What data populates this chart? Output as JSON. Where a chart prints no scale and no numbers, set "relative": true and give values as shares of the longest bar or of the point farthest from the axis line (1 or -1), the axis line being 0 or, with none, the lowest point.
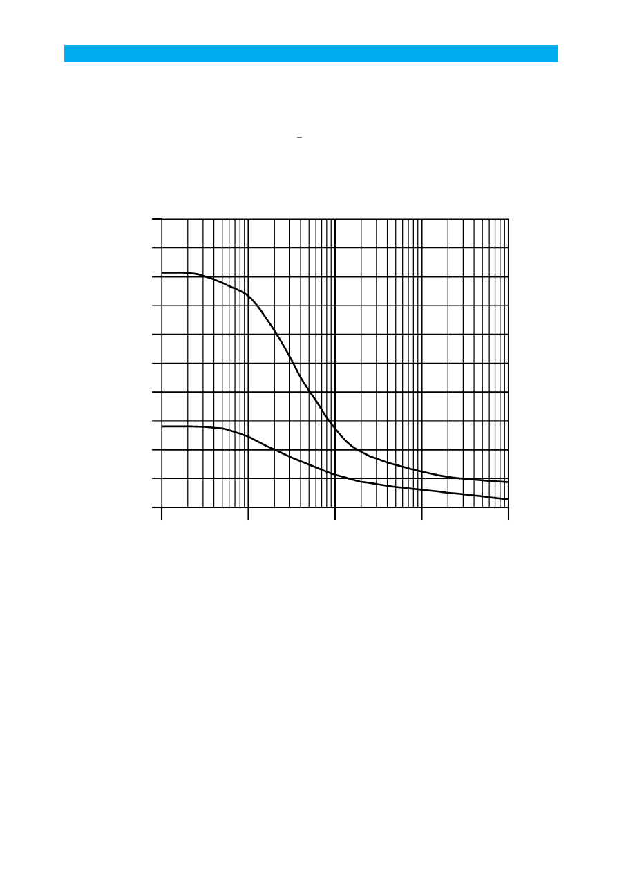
{
  "chart_data": {
    "type": "line",
    "relative": true,
    "categories": [
      null,
      null,
      null,
      null,
      null,
      null,
      null,
      null,
      null,
      null,
      null,
      null,
      null,
      null,
      null,
      null,
      null,
      null,
      null,
      null,
      null,
      null,
      null,
      null,
      null,
      null,
      null,
      null,
      null,
      null,
      null,
      null,
      null,
      null,
      null,
      null,
      null,
      null,
      null,
      null,
      null
    ],
    "series": [
      {
        "color": "#000000",
        "values": [
          1.0,
          1.0,
          1.0,
          0.998,
          0.994,
          0.983,
          0.971,
          0.956,
          0.939,
          0.923,
          0.9,
          0.86,
          0.808,
          0.753,
          0.692,
          0.626,
          0.555,
          0.497,
          0.443,
          0.384,
          0.336,
          0.292,
          0.259,
          0.237,
          0.218,
          0.205,
          0.191,
          0.181,
          0.171,
          0.161,
          0.152,
          0.144,
          0.136,
          0.13,
          0.125,
          0.121,
          0.118,
          0.115,
          0.112,
          0.11,
          0.107
        ]
      },
      {
        "color": "#000000",
        "values": [
          0.345,
          0.345,
          0.345,
          0.345,
          0.344,
          0.343,
          0.339,
          0.336,
          0.326,
          0.314,
          0.301,
          0.282,
          0.263,
          0.246,
          0.229,
          0.212,
          0.197,
          0.182,
          0.167,
          0.152,
          0.139,
          0.129,
          0.118,
          0.109,
          0.104,
          0.098,
          0.092,
          0.087,
          0.083,
          0.079,
          0.075,
          0.071,
          0.067,
          0.062,
          0.059,
          0.055,
          0.051,
          0.047,
          0.042,
          0.038,
          0.034
        ]
      }
    ],
    "grid": true,
    "line_style": "solid",
    "annotations": [
      "–"
    ]
  }
}
